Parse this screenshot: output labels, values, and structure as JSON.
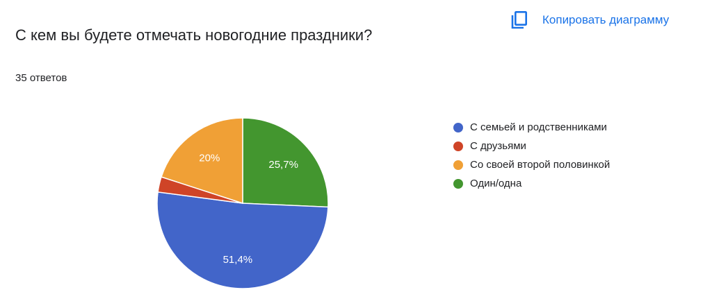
{
  "header": {
    "copy_label": "Копировать диаграмму",
    "copy_icon": "copy-icon",
    "accent": "#1a73e8"
  },
  "question": {
    "title": "С кем вы будете отмечать новогодние праздники?",
    "responses": "35 ответов"
  },
  "chart_data": {
    "type": "pie",
    "title": "",
    "start_angle_deg": 0,
    "direction": "clockwise",
    "slices": [
      {
        "label": "Один/одна",
        "value": 25.7,
        "display": "25,7%",
        "color": "#43962f"
      },
      {
        "label": "С семьей и родственниками",
        "value": 51.4,
        "display": "51,4%",
        "color": "#4265c9"
      },
      {
        "label": "С друзьями",
        "value": 2.9,
        "display": "",
        "color": "#cf4427"
      },
      {
        "label": "Со своей второй половинкой",
        "value": 20.0,
        "display": "20%",
        "color": "#f0a036"
      }
    ],
    "legend": {
      "placement": "right",
      "items": [
        {
          "label": "С семьей и родственниками",
          "color": "#4265c9"
        },
        {
          "label": "С друзьями",
          "color": "#cf4427"
        },
        {
          "label": "Со своей второй половинкой",
          "color": "#f0a036"
        },
        {
          "label": "Один/одна",
          "color": "#43962f"
        }
      ]
    }
  }
}
